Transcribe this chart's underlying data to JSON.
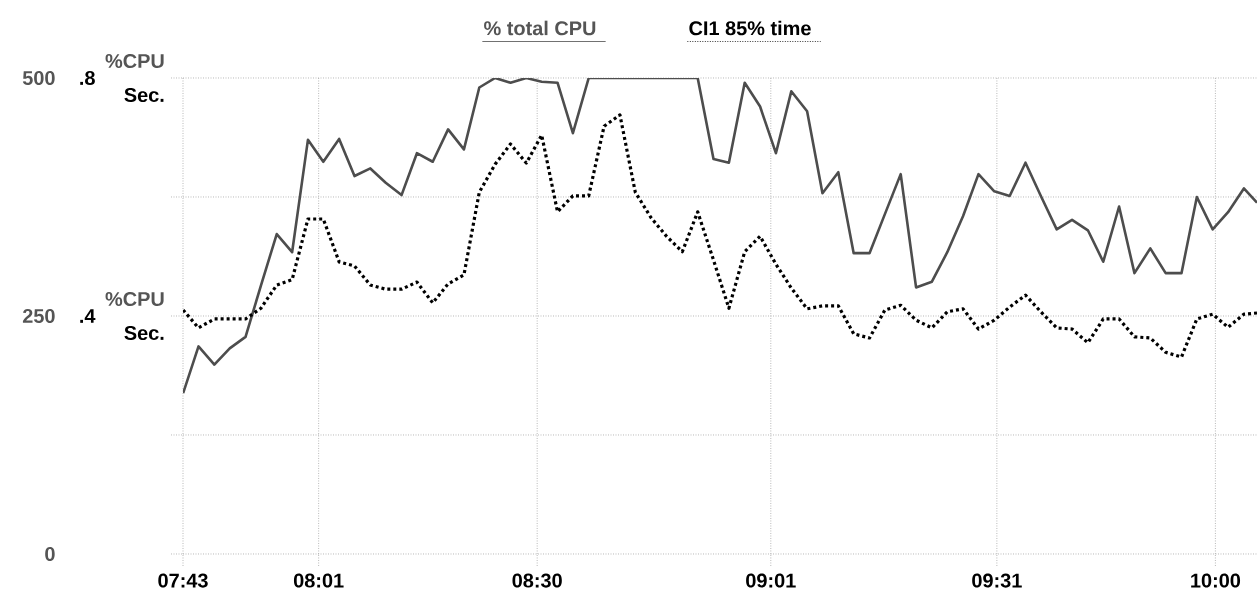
{
  "chart_data": {
    "type": "line",
    "legend": "top",
    "grid": true,
    "marker": "none",
    "annotations": [
      "%CPU",
      "Sec.",
      "%CPU",
      "Sec."
    ],
    "xlim": [
      7.7167,
      10.092
    ],
    "xticks": [
      {
        "value": 7.7167,
        "label": "07:43"
      },
      {
        "value": 8.0167,
        "label": "08:01"
      },
      {
        "value": 8.5,
        "label": "08:30"
      },
      {
        "value": 9.0167,
        "label": "09:01"
      },
      {
        "value": 9.5167,
        "label": "09:31"
      },
      {
        "value": 10.0,
        "label": "10:00"
      }
    ],
    "ylim": [
      0,
      500
    ],
    "yticks": [
      0,
      {
        "value": 125,
        "label": null
      },
      250,
      {
        "value": 375,
        "label": null
      },
      500
    ],
    "y2lim": [
      0,
      0.8
    ],
    "y2ticks": [
      {
        "value": 0.4,
        "label": ".4"
      },
      {
        "value": 0.8,
        "label": ".8"
      }
    ],
    "x": [
      7.717,
      7.751,
      7.786,
      7.82,
      7.855,
      7.889,
      7.924,
      7.958,
      7.993,
      8.027,
      8.062,
      8.096,
      8.131,
      8.165,
      8.2,
      8.234,
      8.269,
      8.303,
      8.338,
      8.372,
      8.407,
      8.441,
      8.476,
      8.51,
      8.545,
      8.579,
      8.614,
      8.648,
      8.683,
      8.717,
      8.752,
      8.786,
      8.821,
      8.855,
      8.89,
      8.924,
      8.959,
      8.993,
      9.028,
      9.062,
      9.097,
      9.131,
      9.166,
      9.2,
      9.235,
      9.269,
      9.304,
      9.338,
      9.373,
      9.407,
      9.442,
      9.476,
      9.511,
      9.545,
      9.58,
      9.614,
      9.649,
      9.683,
      9.718,
      9.752,
      9.787,
      9.821,
      9.856,
      9.89,
      9.925,
      9.959,
      9.994,
      10.028,
      10.063,
      10.092
    ],
    "series": [
      {
        "name": "% total CPU",
        "color": "#4d4d4d",
        "line_style": "solid",
        "values": [
          169,
          218,
          199,
          216,
          228,
          282,
          336,
          317,
          435,
          412,
          436,
          397,
          405,
          390,
          377,
          421,
          412,
          446,
          425,
          490,
          500,
          495,
          500,
          496,
          495,
          442,
          500,
          500,
          500,
          500,
          500,
          500,
          500,
          500,
          415,
          411,
          495,
          470,
          421,
          486,
          465,
          379,
          401,
          316,
          316,
          357,
          399,
          280,
          286,
          317,
          355,
          399,
          381,
          376,
          411,
          376,
          341,
          351,
          340,
          307,
          365,
          295,
          321,
          295,
          295,
          375,
          341,
          359,
          384,
          369
        ]
      },
      {
        "name": "CI1 85% time",
        "color": "#000000",
        "line_style": "dotted",
        "axis": "y2",
        "values": [
          0.41,
          0.38,
          0.395,
          0.395,
          0.395,
          0.413,
          0.452,
          0.461,
          0.563,
          0.563,
          0.491,
          0.484,
          0.452,
          0.445,
          0.445,
          0.457,
          0.422,
          0.454,
          0.469,
          0.608,
          0.655,
          0.689,
          0.657,
          0.704,
          0.575,
          0.602,
          0.602,
          0.719,
          0.738,
          0.608,
          0.565,
          0.534,
          0.508,
          0.575,
          0.494,
          0.413,
          0.508,
          0.534,
          0.487,
          0.447,
          0.412,
          0.417,
          0.417,
          0.37,
          0.363,
          0.41,
          0.418,
          0.393,
          0.38,
          0.407,
          0.412,
          0.378,
          0.393,
          0.415,
          0.435,
          0.407,
          0.38,
          0.378,
          0.355,
          0.395,
          0.395,
          0.365,
          0.363,
          0.339,
          0.331,
          0.395,
          0.403,
          0.381,
          0.403,
          0.405
        ]
      }
    ]
  }
}
